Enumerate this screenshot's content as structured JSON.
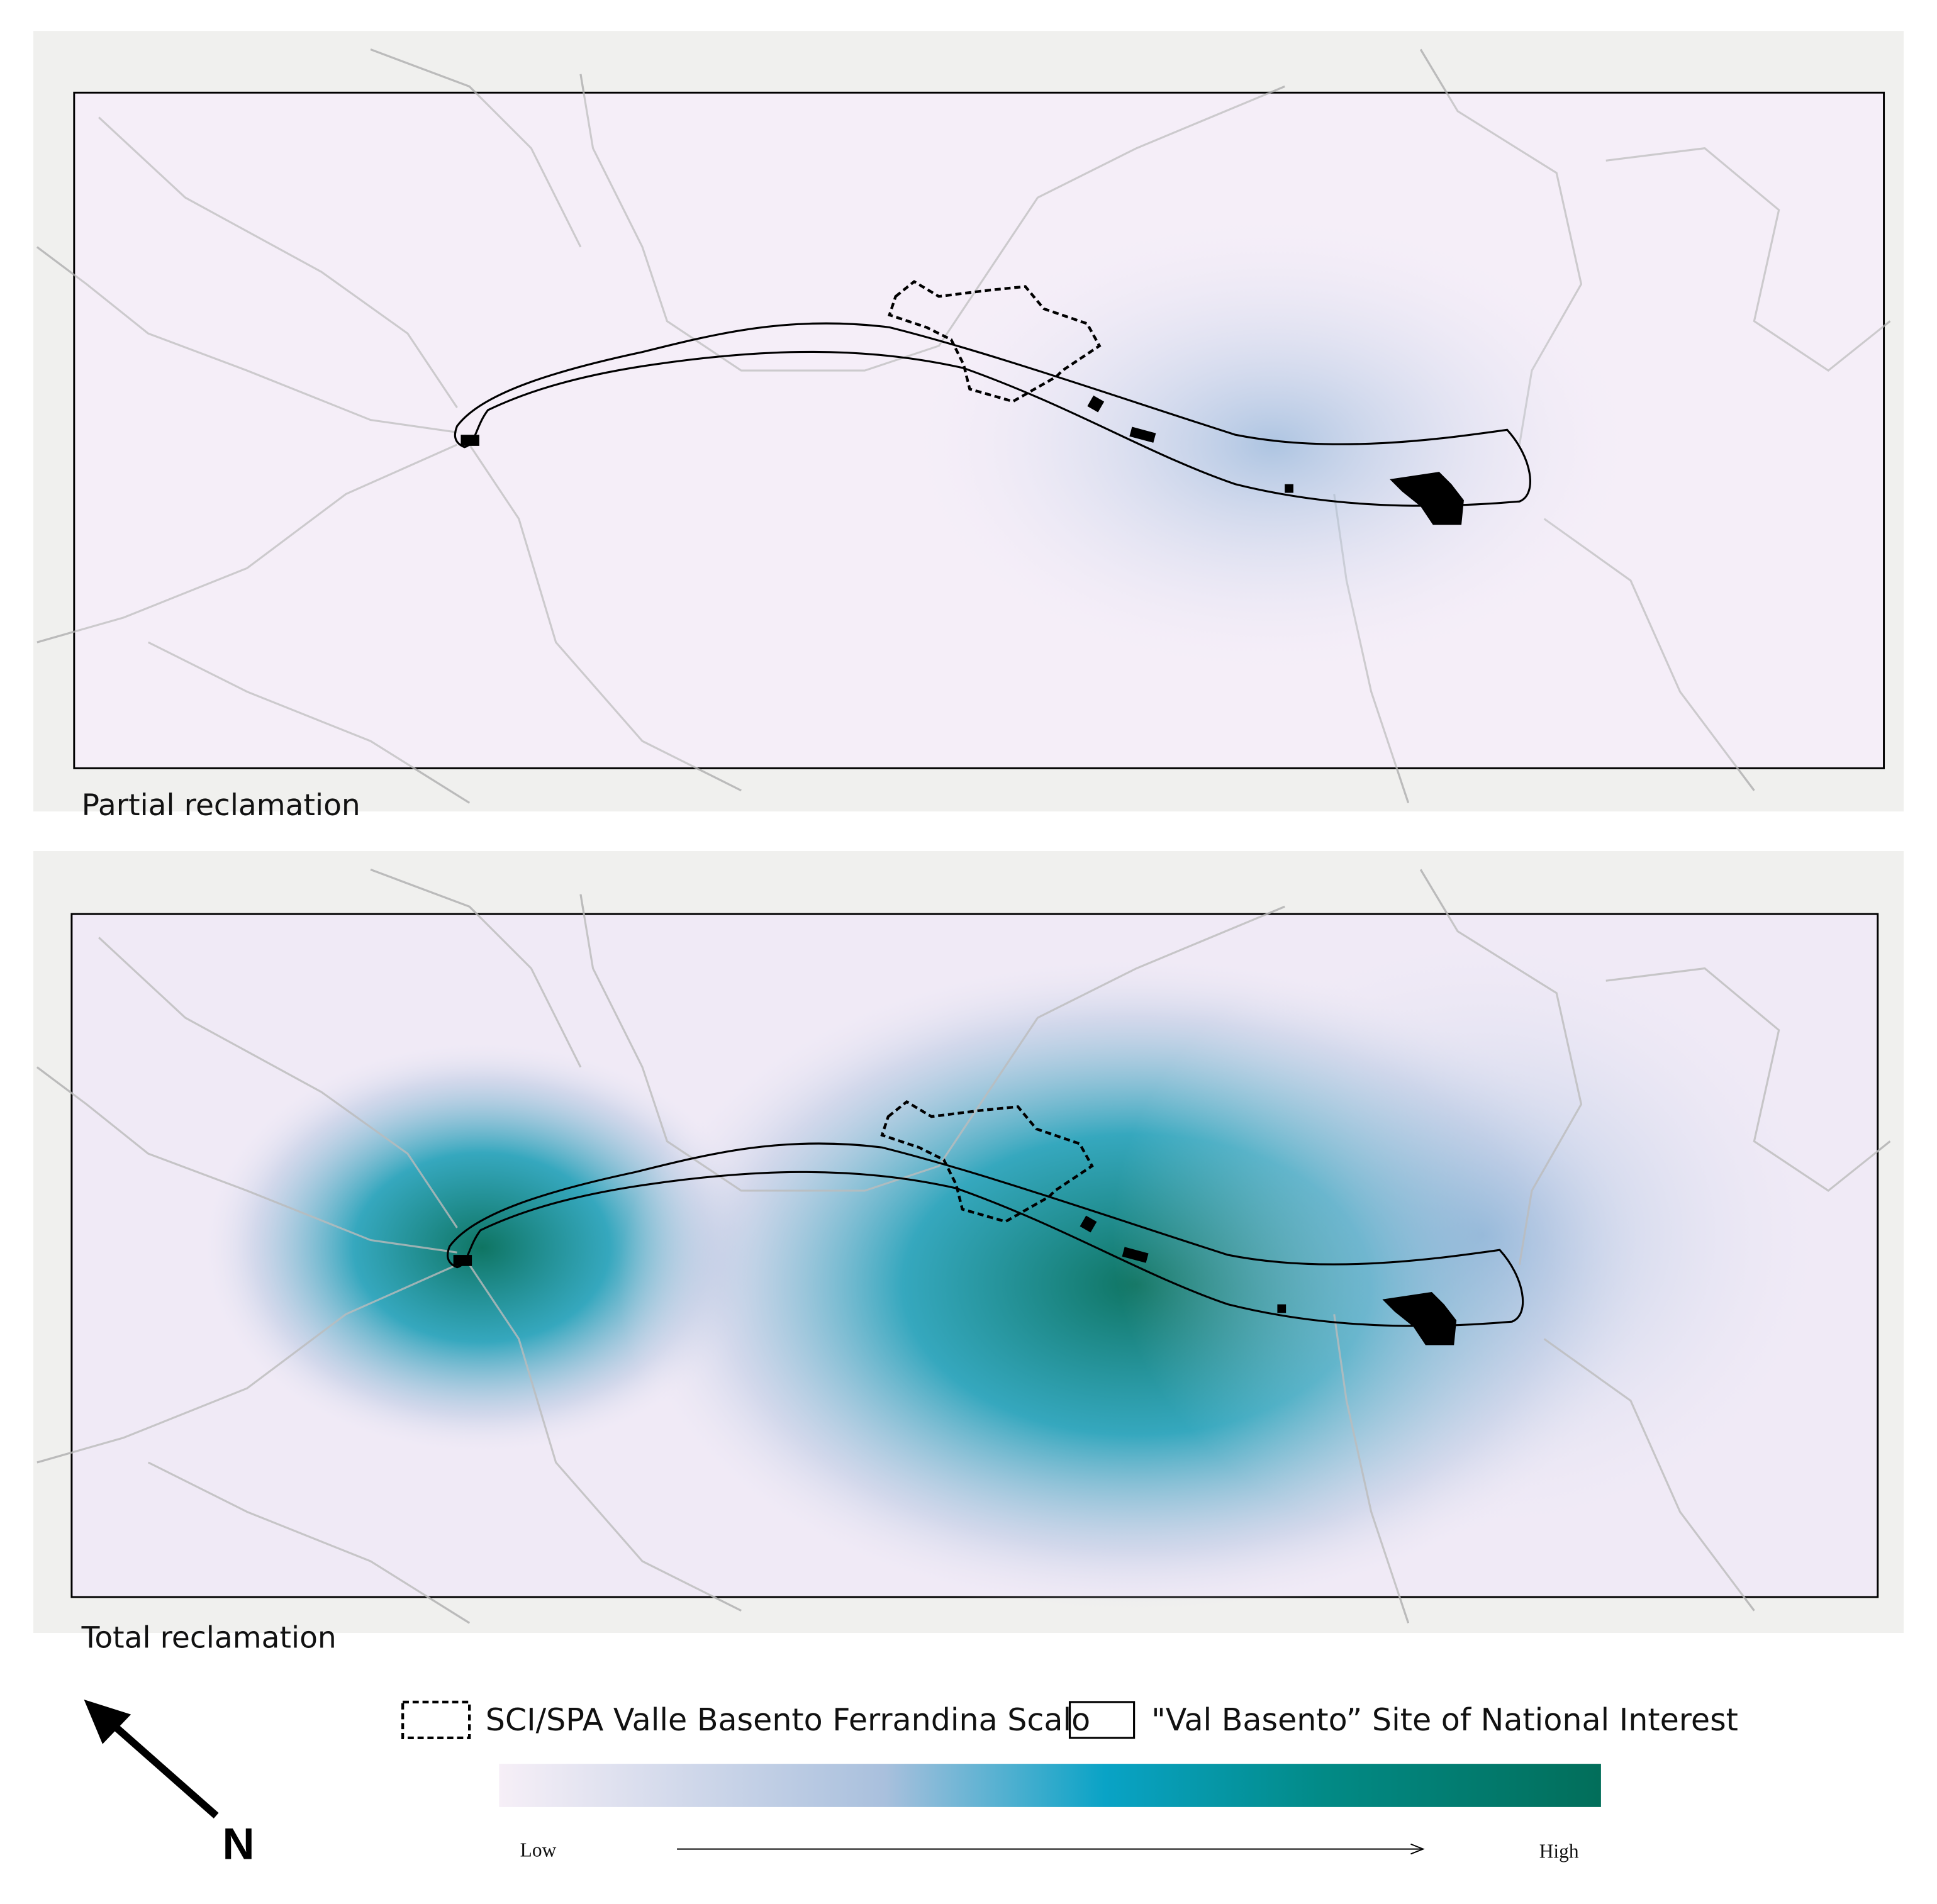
{
  "panels": [
    {
      "label": "Partial reclamation"
    },
    {
      "label": "Total reclamation"
    }
  ],
  "legend": {
    "items": [
      {
        "label": "SCI/SPA Valle Basento Ferrandina Scalo"
      },
      {
        "label": "\"Val Basento” Site of National Interest"
      }
    ],
    "colorbar": {
      "low": "Low",
      "high": "High"
    }
  },
  "north_arrow": {
    "label": "N"
  }
}
